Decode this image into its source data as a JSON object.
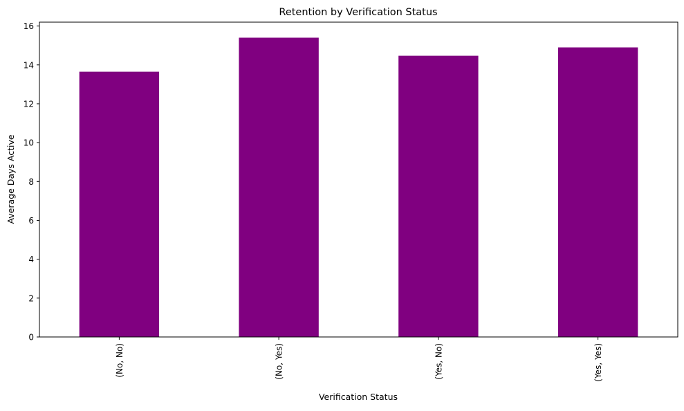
{
  "chart_data": {
    "type": "bar",
    "title": "Retention by Verification Status",
    "xlabel": "Verification Status",
    "ylabel": "Average Days Active",
    "categories": [
      "(No, No)",
      "(No, Yes)",
      "(Yes, No)",
      "(Yes, Yes)"
    ],
    "values": [
      13.65,
      15.4,
      14.47,
      14.9
    ],
    "ylim": [
      0,
      16.2
    ],
    "yticks": [
      0,
      2,
      4,
      6,
      8,
      10,
      12,
      14,
      16
    ],
    "ytick_labels": [
      "0",
      "2",
      "4",
      "6",
      "8",
      "10",
      "12",
      "14",
      "16"
    ],
    "bar_color": "#800080",
    "grid": false,
    "legend": "none"
  }
}
